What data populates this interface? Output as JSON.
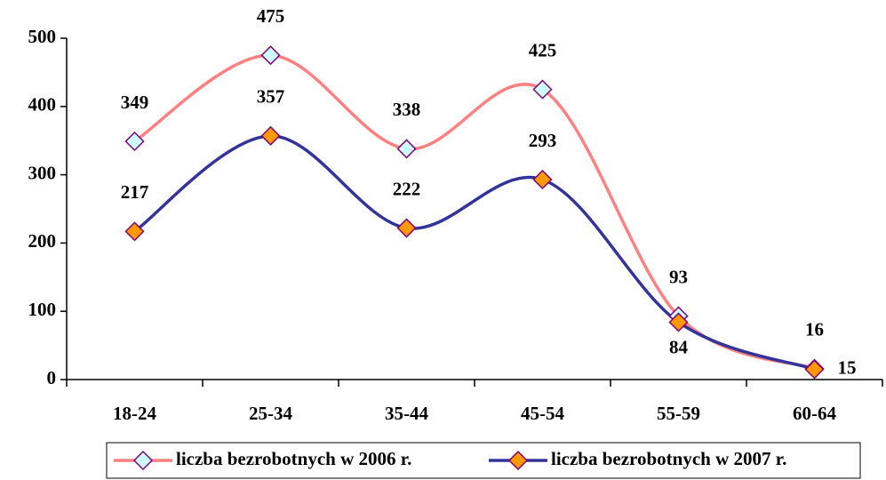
{
  "chart_data": {
    "type": "line",
    "categories": [
      "18-24",
      "25-34",
      "35-44",
      "45-54",
      "55-59",
      "60-64"
    ],
    "series": [
      {
        "name": "liczba bezrobotnych w 2006 r.",
        "color": "#ff8080",
        "marker_fill": "#ccffff",
        "values": [
          349,
          475,
          338,
          425,
          93,
          16
        ]
      },
      {
        "name": "liczba bezrobotnych w 2007 r.",
        "color": "#333399",
        "marker_fill": "#ff9900",
        "values": [
          217,
          357,
          222,
          293,
          84,
          15
        ]
      }
    ],
    "ylim": [
      0,
      500
    ],
    "yticks": [
      0,
      100,
      200,
      300,
      400,
      500
    ],
    "grid": false,
    "smooth": true,
    "legend": "bottom"
  }
}
